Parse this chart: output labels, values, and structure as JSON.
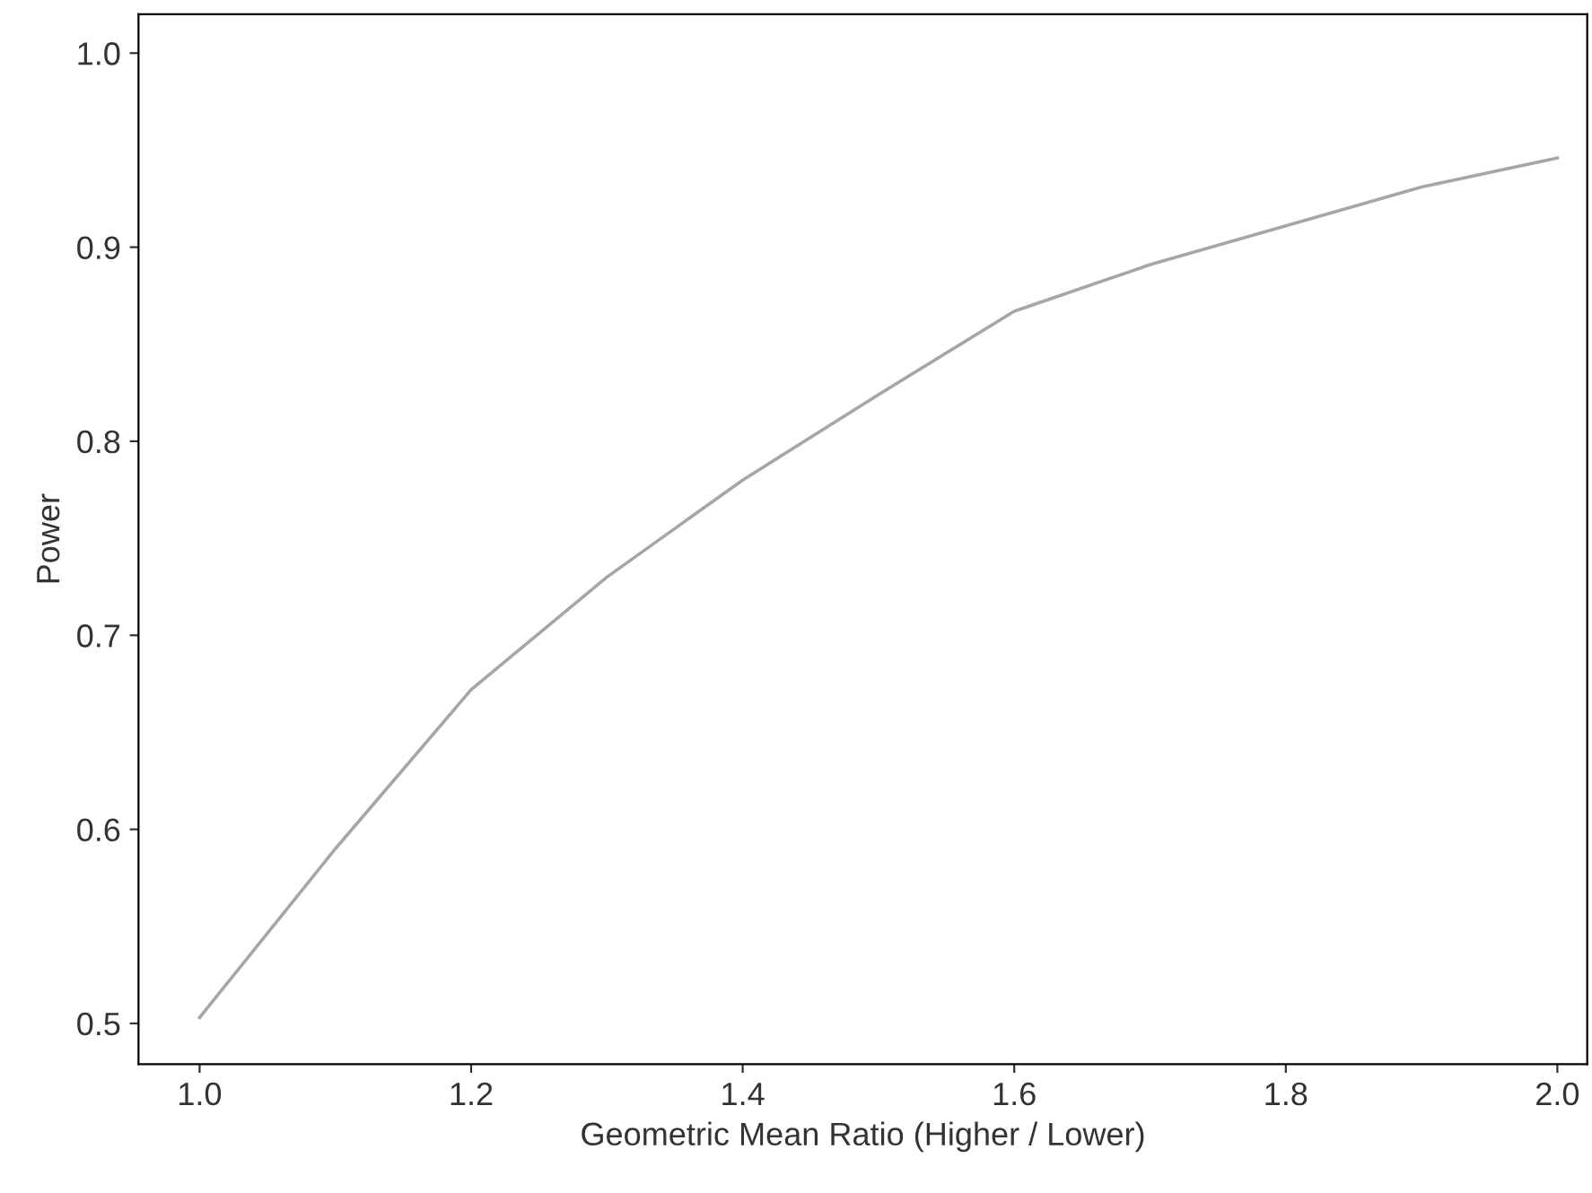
{
  "chart_data": {
    "type": "line",
    "xlabel": "Geometric Mean Ratio (Higher / Lower)",
    "ylabel": "Power",
    "x": [
      1.0,
      1.1,
      1.2,
      1.3,
      1.4,
      1.5,
      1.6,
      1.7,
      1.8,
      1.9,
      2.0
    ],
    "series": [
      {
        "color": "#a6a6a6",
        "values": [
          0.503,
          0.59,
          0.672,
          0.73,
          0.78,
          0.824,
          0.867,
          0.891,
          0.911,
          0.931,
          0.946
        ]
      }
    ],
    "xlim": [
      0.955,
      2.022
    ],
    "ylim": [
      0.479,
      1.02
    ],
    "xticks": [
      {
        "value": 1.0,
        "label": "1.0"
      },
      1.2,
      1.4,
      1.6,
      1.8,
      {
        "value": 2.0,
        "label": "2.0"
      }
    ],
    "yticks": [
      0.5,
      0.6,
      0.7,
      0.8,
      0.9,
      {
        "value": 1.0,
        "label": "1.0"
      }
    ],
    "grid": false,
    "legend": false,
    "marker": "none",
    "line_style": "solid"
  }
}
